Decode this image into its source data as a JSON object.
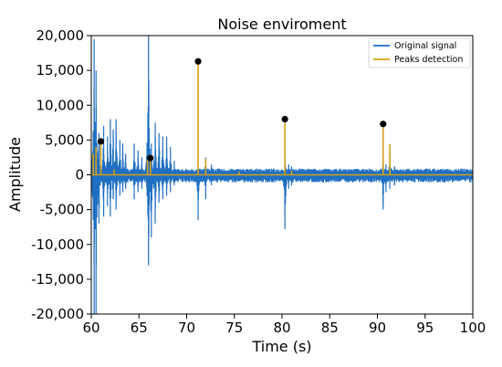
{
  "chart_data": {
    "type": "line",
    "title": "Noise enviroment",
    "xlabel": "Time (s)",
    "ylabel": "Amplitude",
    "xlim": [
      60,
      100
    ],
    "ylim": [
      -20000,
      20000
    ],
    "xticks": [
      60,
      65,
      70,
      75,
      80,
      85,
      90,
      95,
      100
    ],
    "yticks": [
      20000,
      15000,
      10000,
      5000,
      0,
      -5000,
      -10000,
      -15000,
      -20000
    ],
    "xtick_labels": [
      "60",
      "65",
      "70",
      "75",
      "80",
      "85",
      "90",
      "95",
      "100"
    ],
    "ytick_labels": [
      "20,000",
      "15,000",
      "10,000",
      "5,000",
      "0",
      "-5,000",
      "-10,000",
      "-15,000",
      "-20,000"
    ],
    "grid": false,
    "legend_position": "top-right",
    "legend": [
      "Original signal",
      "Peaks detection"
    ],
    "colors": {
      "original": "#1f6fc2",
      "peaks": "#d4a017",
      "markers": "#000000"
    },
    "series": [
      {
        "name": "Original signal",
        "bursts": [
          {
            "x": 60.3,
            "pos": 19500,
            "neg": -20000
          },
          {
            "x": 60.5,
            "pos": 15000,
            "neg": -20000
          },
          {
            "x": 60.8,
            "pos": 6000,
            "neg": -7000
          },
          {
            "x": 61.3,
            "pos": 7000,
            "neg": -6000
          },
          {
            "x": 61.7,
            "pos": 5500,
            "neg": -4500
          },
          {
            "x": 62.0,
            "pos": 8000,
            "neg": -6000
          },
          {
            "x": 62.3,
            "pos": 6500,
            "neg": -3500
          },
          {
            "x": 62.6,
            "pos": 8000,
            "neg": -5000
          },
          {
            "x": 63.0,
            "pos": 5000,
            "neg": -3000
          },
          {
            "x": 63.3,
            "pos": 4500,
            "neg": -2500
          },
          {
            "x": 63.6,
            "pos": 3000,
            "neg": -2000
          },
          {
            "x": 64.5,
            "pos": 4500,
            "neg": -3500
          },
          {
            "x": 64.9,
            "pos": 3500,
            "neg": -2500
          },
          {
            "x": 65.3,
            "pos": 2500,
            "neg": -2000
          },
          {
            "x": 66.0,
            "pos": 20000,
            "neg": -13000
          },
          {
            "x": 66.3,
            "pos": 4500,
            "neg": -9000
          },
          {
            "x": 66.7,
            "pos": 7500,
            "neg": -7000
          },
          {
            "x": 67.1,
            "pos": 6000,
            "neg": -4000
          },
          {
            "x": 67.5,
            "pos": 5500,
            "neg": -3500
          },
          {
            "x": 67.9,
            "pos": 5500,
            "neg": -3000
          },
          {
            "x": 68.3,
            "pos": 4000,
            "neg": -2500
          },
          {
            "x": 68.7,
            "pos": 2000,
            "neg": -1500
          },
          {
            "x": 71.2,
            "pos": 1800,
            "neg": -6500
          },
          {
            "x": 72.0,
            "pos": 2500,
            "neg": -3500
          },
          {
            "x": 72.6,
            "pos": 1500,
            "neg": -1500
          },
          {
            "x": 80.3,
            "pos": 2500,
            "neg": -7800
          },
          {
            "x": 80.7,
            "pos": 1500,
            "neg": -2000
          },
          {
            "x": 81.0,
            "pos": 1200,
            "neg": -1500
          },
          {
            "x": 90.6,
            "pos": 2500,
            "neg": -5000
          },
          {
            "x": 90.9,
            "pos": 1500,
            "neg": -2500
          },
          {
            "x": 91.3,
            "pos": 3000,
            "neg": -2000
          },
          {
            "x": 91.8,
            "pos": 1200,
            "neg": -1500
          }
        ],
        "noise_floor": {
          "pos": 900,
          "neg": -1100
        }
      },
      {
        "name": "Peaks detection",
        "x": [
          60.2,
          60.5,
          61.0,
          62.4,
          65.9,
          66.2,
          71.2,
          72.0,
          75.5,
          80.3,
          81.0,
          90.6,
          91.3
        ],
        "values": [
          3000,
          4000,
          4800,
          800,
          2200,
          2400,
          16300,
          2300,
          400,
          8000,
          600,
          7300,
          4400
        ]
      }
    ],
    "detected_peaks": [
      {
        "x": 61.0,
        "y": 4800
      },
      {
        "x": 66.2,
        "y": 2400
      },
      {
        "x": 71.2,
        "y": 16300
      },
      {
        "x": 80.3,
        "y": 8000
      },
      {
        "x": 90.6,
        "y": 7300
      }
    ]
  }
}
